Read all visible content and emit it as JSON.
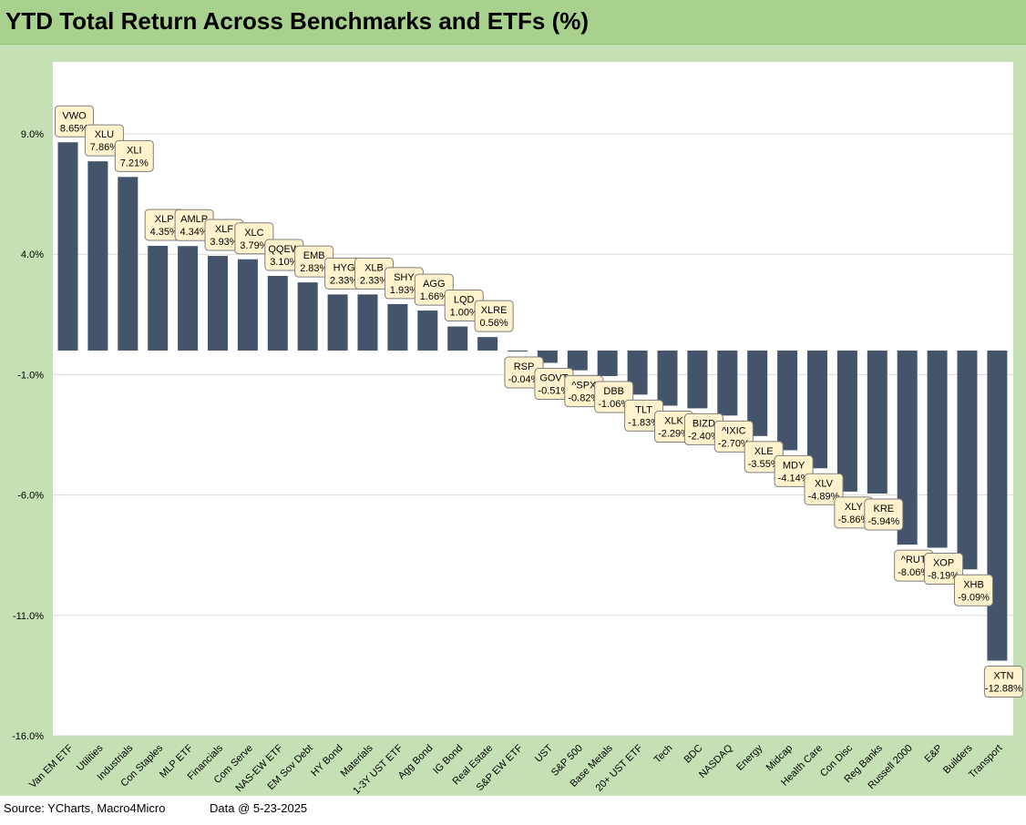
{
  "title": "YTD Total Return Across Benchmarks and ETFs (%)",
  "footer": {
    "source": "Source: YCharts, Macro4Micro",
    "data_note": "Data @ 5-23-2025"
  },
  "colors": {
    "frame": "#c5e0b4",
    "title_bar": "#a9d18e",
    "bar": "#44546a",
    "label_box": "#fff2cc"
  },
  "chart_data": {
    "type": "bar",
    "title": "YTD Total Return Across Benchmarks and ETFs (%)",
    "xlabel": "",
    "ylabel": "",
    "ylim": [
      -16.0,
      12.0
    ],
    "yticks": [
      "9.0%",
      "4.0%",
      "-1.0%",
      "-6.0%",
      "-11.0%",
      "-16.0%"
    ],
    "ytick_values": [
      9.0,
      4.0,
      -1.0,
      -6.0,
      -11.0,
      -16.0
    ],
    "grid": true,
    "legend": "none",
    "categories": [
      "Van EM ETF",
      "Utilities",
      "Industrials",
      "Con Staples",
      "MLP ETF",
      "Financials",
      "Com Serve",
      "NAS-EW ETF",
      "EM Sov Debt",
      "HY Bond",
      "Materials",
      "1-3Y UST ETF",
      "Agg Bond",
      "IG Bond",
      "Real Estate",
      "S&P EW ETF",
      "UST",
      "S&P 500",
      "Base Metals",
      "20+ UST ETF",
      "Tech",
      "BDC",
      "NASDAQ",
      "Energy",
      "Midcap",
      "Health Care",
      "Con Disc",
      "Reg Banks",
      "Russell 2000",
      "E&P",
      "Builders",
      "Transport"
    ],
    "tickers": [
      "VWO",
      "XLU",
      "XLI",
      "XLP",
      "AMLP",
      "XLF",
      "XLC",
      "QQEW",
      "EMB",
      "HYG",
      "XLB",
      "SHY",
      "AGG",
      "LQD",
      "XLRE",
      "RSP",
      "GOVT",
      "^SPX",
      "DBB",
      "TLT",
      "XLK",
      "BIZD",
      "^IXIC",
      "XLE",
      "MDY",
      "XLV",
      "XLY",
      "KRE",
      "^RUT",
      "XOP",
      "XHB",
      "XTN"
    ],
    "data_labels": [
      "8.65%",
      "7.86%",
      "7.21%",
      "4.35%",
      "4.34%",
      "3.93%",
      "3.79%",
      "3.10%",
      "2.83%",
      "2.33%",
      "2.33%",
      "1.93%",
      "1.66%",
      "1.00%",
      "0.56%",
      "-0.04%",
      "-0.51%",
      "-0.82%",
      "-1.06%",
      "-1.83%",
      "-2.29%",
      "-2.40%",
      "-2.70%",
      "-3.55%",
      "-4.14%",
      "-4.89%",
      "-5.86%",
      "-5.94%",
      "-8.06%",
      "-8.19%",
      "-9.09%",
      "-12.88%"
    ],
    "values": [
      8.65,
      7.86,
      7.21,
      4.35,
      4.34,
      3.93,
      3.79,
      3.1,
      2.83,
      2.33,
      2.33,
      1.93,
      1.66,
      1.0,
      0.56,
      -0.04,
      -0.51,
      -0.82,
      -1.06,
      -1.83,
      -2.29,
      -2.4,
      -2.7,
      -3.55,
      -4.14,
      -4.89,
      -5.86,
      -5.94,
      -8.06,
      -8.19,
      -9.09,
      -12.88
    ]
  }
}
